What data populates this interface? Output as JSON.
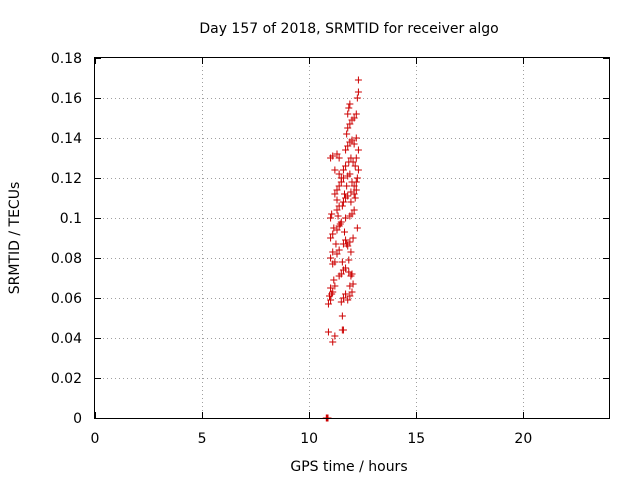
{
  "chart_data": {
    "type": "scatter",
    "title": "Day 157 of 2018, SRMTID for receiver algo",
    "xlabel": "GPS time / hours",
    "ylabel": "SRMTID / TECUs",
    "xlim": [
      0,
      24
    ],
    "ylim": [
      0,
      0.18
    ],
    "x_ticks": [
      0,
      5,
      10,
      15,
      20
    ],
    "x_tick_labels": [
      "0",
      "5",
      "10",
      "15",
      "20"
    ],
    "y_ticks": [
      0,
      0.02,
      0.04,
      0.06,
      0.08,
      0.1,
      0.12,
      0.14,
      0.16,
      0.18
    ],
    "y_tick_labels": [
      "0",
      "0.02",
      "0.04",
      "0.06",
      "0.08",
      "0.1",
      "0.12",
      "0.14",
      "0.16",
      "0.18"
    ],
    "grid": true,
    "marker": "+",
    "color": "#cc0000",
    "points": [
      [
        10.8,
        0.0
      ],
      [
        10.82,
        0.0
      ],
      [
        10.84,
        0.0
      ],
      [
        10.86,
        0.0
      ],
      [
        10.88,
        0.0
      ],
      [
        10.9,
        0.043
      ],
      [
        11.1,
        0.038
      ],
      [
        11.2,
        0.041
      ],
      [
        11.55,
        0.044
      ],
      [
        11.6,
        0.044
      ],
      [
        11.55,
        0.051
      ],
      [
        10.9,
        0.057
      ],
      [
        11.0,
        0.059
      ],
      [
        10.95,
        0.061
      ],
      [
        11.05,
        0.062
      ],
      [
        11.1,
        0.063
      ],
      [
        11.0,
        0.065
      ],
      [
        11.2,
        0.066
      ],
      [
        11.15,
        0.069
      ],
      [
        11.5,
        0.058
      ],
      [
        11.6,
        0.06
      ],
      [
        11.7,
        0.062
      ],
      [
        11.8,
        0.059
      ],
      [
        11.9,
        0.061
      ],
      [
        12.0,
        0.063
      ],
      [
        11.9,
        0.066
      ],
      [
        12.05,
        0.067
      ],
      [
        11.4,
        0.071
      ],
      [
        11.5,
        0.072
      ],
      [
        11.6,
        0.074
      ],
      [
        11.7,
        0.075
      ],
      [
        11.85,
        0.073
      ],
      [
        11.95,
        0.071
      ],
      [
        12.0,
        0.072
      ],
      [
        11.1,
        0.077
      ],
      [
        11.2,
        0.078
      ],
      [
        11.0,
        0.08
      ],
      [
        11.1,
        0.083
      ],
      [
        11.3,
        0.082
      ],
      [
        11.4,
        0.084
      ],
      [
        11.6,
        0.087
      ],
      [
        11.7,
        0.089
      ],
      [
        11.8,
        0.086
      ],
      [
        11.9,
        0.088
      ],
      [
        11.85,
        0.079
      ],
      [
        11.0,
        0.09
      ],
      [
        11.1,
        0.092
      ],
      [
        11.3,
        0.094
      ],
      [
        11.4,
        0.096
      ],
      [
        11.5,
        0.098
      ],
      [
        11.7,
        0.1
      ],
      [
        11.9,
        0.101
      ],
      [
        12.0,
        0.102
      ],
      [
        12.1,
        0.104
      ],
      [
        12.25,
        0.095
      ],
      [
        11.0,
        0.1
      ],
      [
        11.05,
        0.102
      ],
      [
        11.3,
        0.104
      ],
      [
        11.4,
        0.106
      ],
      [
        11.6,
        0.108
      ],
      [
        11.7,
        0.11
      ],
      [
        11.8,
        0.111
      ],
      [
        11.95,
        0.113
      ],
      [
        12.1,
        0.112
      ],
      [
        12.2,
        0.114
      ],
      [
        11.2,
        0.112
      ],
      [
        11.3,
        0.114
      ],
      [
        11.4,
        0.116
      ],
      [
        11.5,
        0.118
      ],
      [
        11.6,
        0.12
      ],
      [
        11.8,
        0.121
      ],
      [
        11.9,
        0.122
      ],
      [
        12.0,
        0.118
      ],
      [
        12.1,
        0.116
      ],
      [
        12.2,
        0.118
      ],
      [
        11.2,
        0.124
      ],
      [
        11.4,
        0.122
      ],
      [
        11.5,
        0.12
      ],
      [
        11.6,
        0.124
      ],
      [
        11.7,
        0.126
      ],
      [
        11.85,
        0.128
      ],
      [
        11.95,
        0.13
      ],
      [
        12.05,
        0.128
      ],
      [
        12.15,
        0.126
      ],
      [
        12.3,
        0.124
      ],
      [
        11.0,
        0.13
      ],
      [
        11.1,
        0.131
      ],
      [
        11.3,
        0.132
      ],
      [
        11.4,
        0.13
      ],
      [
        11.7,
        0.134
      ],
      [
        11.8,
        0.136
      ],
      [
        11.9,
        0.138
      ],
      [
        12.0,
        0.139
      ],
      [
        12.1,
        0.137
      ],
      [
        12.2,
        0.14
      ],
      [
        11.75,
        0.142
      ],
      [
        11.8,
        0.145
      ],
      [
        11.9,
        0.147
      ],
      [
        12.0,
        0.149
      ],
      [
        12.1,
        0.15
      ],
      [
        11.8,
        0.152
      ],
      [
        11.85,
        0.155
      ],
      [
        11.9,
        0.157
      ],
      [
        12.2,
        0.152
      ],
      [
        12.25,
        0.16
      ],
      [
        12.3,
        0.163
      ],
      [
        12.3,
        0.169
      ],
      [
        11.3,
        0.109
      ],
      [
        11.45,
        0.097
      ],
      [
        11.65,
        0.093
      ],
      [
        11.75,
        0.087
      ],
      [
        11.95,
        0.083
      ],
      [
        12.05,
        0.09
      ],
      [
        11.55,
        0.078
      ],
      [
        11.25,
        0.087
      ],
      [
        11.15,
        0.095
      ],
      [
        11.35,
        0.101
      ],
      [
        11.55,
        0.106
      ],
      [
        11.75,
        0.116
      ],
      [
        11.95,
        0.108
      ],
      [
        12.15,
        0.11
      ],
      [
        12.25,
        0.12
      ],
      [
        12.2,
        0.13
      ],
      [
        12.3,
        0.134
      ],
      [
        11.65,
        0.112
      ]
    ]
  }
}
